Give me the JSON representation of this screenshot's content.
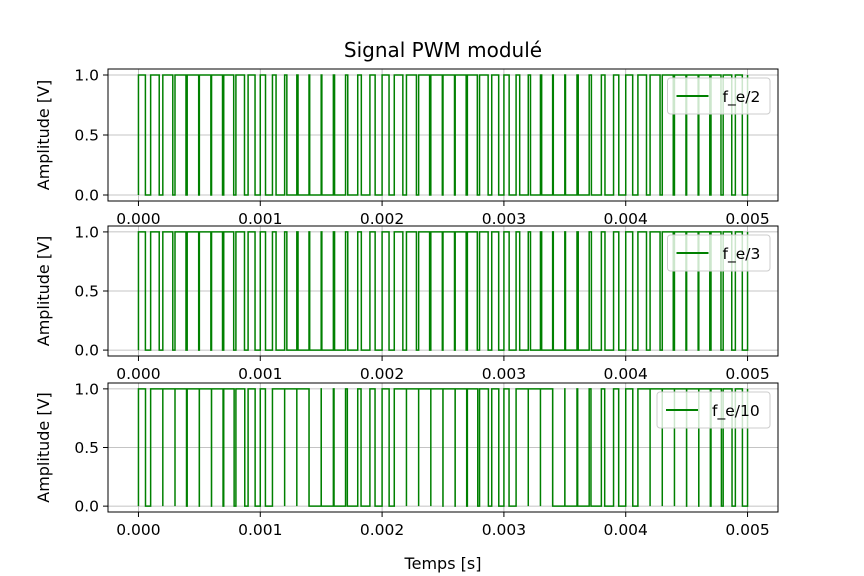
{
  "figure": {
    "title": "Signal PWM modulé",
    "xlabel": "Temps [s]"
  },
  "chart_data": [
    {
      "type": "line",
      "title": "Signal PWM modulé",
      "xlabel": "",
      "ylabel": "Amplitude [V]",
      "xlim": [
        -0.00025,
        0.00525
      ],
      "ylim": [
        -0.05,
        1.05
      ],
      "xticks": [
        "0.000",
        "0.001",
        "0.002",
        "0.003",
        "0.004",
        "0.005"
      ],
      "yticks": [
        "0.0",
        "0.5",
        "1.0"
      ],
      "grid": true,
      "legend_position": "top-right",
      "series": [
        {
          "name": "f_e/2",
          "color": "#008000",
          "x": [
            0.0,
            0.005
          ],
          "y_values": [
            0,
            1
          ],
          "pulse_period": 0.0001,
          "duty_cycle_min": 0.05,
          "duty_cycle_max": 0.95
        }
      ]
    },
    {
      "type": "line",
      "title": "",
      "xlabel": "",
      "ylabel": "Amplitude [V]",
      "xlim": [
        -0.00025,
        0.00525
      ],
      "ylim": [
        -0.05,
        1.05
      ],
      "xticks": [
        "0.000",
        "0.001",
        "0.002",
        "0.003",
        "0.004",
        "0.005"
      ],
      "yticks": [
        "0.0",
        "0.5",
        "1.0"
      ],
      "grid": true,
      "legend_position": "top-right",
      "series": [
        {
          "name": "f_e/3",
          "color": "#008000",
          "x": [
            0.0,
            0.005
          ],
          "y_values": [
            0,
            1
          ],
          "pulse_period": 0.0001,
          "duty_cycle_min": 0.05,
          "duty_cycle_max": 0.95
        }
      ]
    },
    {
      "type": "line",
      "title": "",
      "xlabel": "Temps [s]",
      "ylabel": "Amplitude [V]",
      "xlim": [
        -0.00025,
        0.00525
      ],
      "ylim": [
        -0.05,
        1.05
      ],
      "xticks": [
        "0.000",
        "0.001",
        "0.002",
        "0.003",
        "0.004",
        "0.005"
      ],
      "yticks": [
        "0.0",
        "0.5",
        "1.0"
      ],
      "grid": true,
      "legend_position": "top-right",
      "series": [
        {
          "name": "f_e/10",
          "color": "#008000",
          "x": [
            0.0,
            0.005
          ],
          "y_values": [
            0,
            1
          ],
          "pulse_period": 0.0001,
          "duty_cycle_min": 0.0,
          "duty_cycle_max": 1.0,
          "saturated_high_intervals": [
            [
              0.00015,
              0.00035
            ],
            [
              0.00113,
              0.00135
            ],
            [
              0.00213,
              0.00235
            ],
            [
              0.00313,
              0.00335
            ],
            [
              0.00413,
              0.00435
            ]
          ]
        }
      ]
    }
  ]
}
